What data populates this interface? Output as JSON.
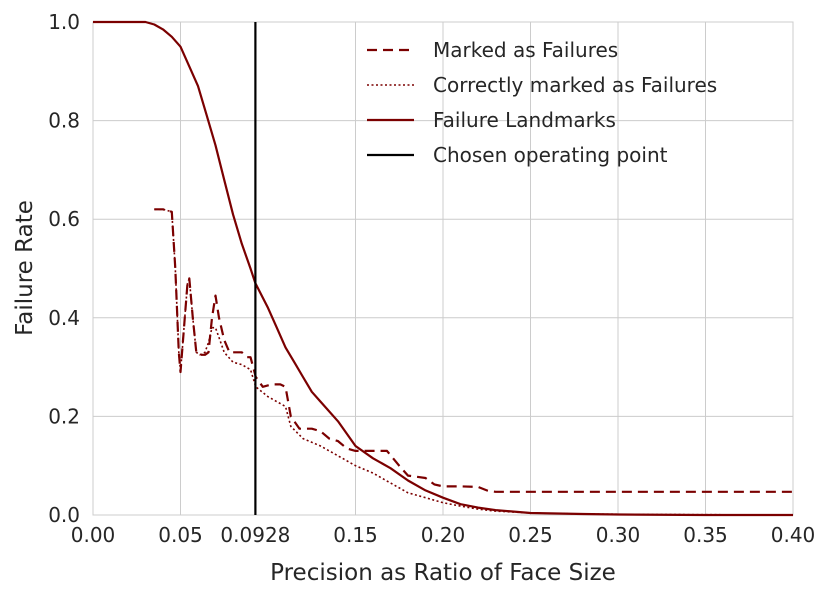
{
  "chart_data": {
    "type": "line",
    "title": "",
    "xlabel": "Precision as Ratio of Face Size",
    "ylabel": "Failure Rate",
    "xlim": [
      0.0,
      0.4
    ],
    "ylim": [
      0.0,
      1.0
    ],
    "xticks": [
      {
        "value": 0.0,
        "label": "0.00"
      },
      {
        "value": 0.05,
        "label": "0.05"
      },
      {
        "value": 0.0928,
        "label": "0.0928"
      },
      {
        "value": 0.15,
        "label": "0.15"
      },
      {
        "value": 0.2,
        "label": "0.20"
      },
      {
        "value": 0.25,
        "label": "0.25"
      },
      {
        "value": 0.3,
        "label": "0.30"
      },
      {
        "value": 0.35,
        "label": "0.35"
      },
      {
        "value": 0.4,
        "label": "0.40"
      }
    ],
    "yticks": [
      {
        "value": 0.0,
        "label": "0.0"
      },
      {
        "value": 0.2,
        "label": "0.2"
      },
      {
        "value": 0.4,
        "label": "0.4"
      },
      {
        "value": 0.6,
        "label": "0.6"
      },
      {
        "value": 0.8,
        "label": "0.8"
      },
      {
        "value": 1.0,
        "label": "1.0"
      }
    ],
    "grid": true,
    "legend_position": "top-right",
    "series": [
      {
        "name": "Marked as Failures",
        "style": "dashed",
        "color": "#7b0000",
        "points": [
          [
            0.035,
            0.62
          ],
          [
            0.04,
            0.62
          ],
          [
            0.045,
            0.615
          ],
          [
            0.047,
            0.5
          ],
          [
            0.049,
            0.33
          ],
          [
            0.05,
            0.29
          ],
          [
            0.052,
            0.38
          ],
          [
            0.054,
            0.47
          ],
          [
            0.055,
            0.48
          ],
          [
            0.057,
            0.4
          ],
          [
            0.059,
            0.33
          ],
          [
            0.061,
            0.325
          ],
          [
            0.064,
            0.325
          ],
          [
            0.066,
            0.33
          ],
          [
            0.068,
            0.4
          ],
          [
            0.07,
            0.445
          ],
          [
            0.072,
            0.4
          ],
          [
            0.075,
            0.355
          ],
          [
            0.078,
            0.33
          ],
          [
            0.085,
            0.33
          ],
          [
            0.088,
            0.32
          ],
          [
            0.09,
            0.32
          ],
          [
            0.093,
            0.28
          ],
          [
            0.097,
            0.26
          ],
          [
            0.102,
            0.265
          ],
          [
            0.107,
            0.265
          ],
          [
            0.11,
            0.26
          ],
          [
            0.113,
            0.2
          ],
          [
            0.118,
            0.175
          ],
          [
            0.125,
            0.175
          ],
          [
            0.13,
            0.17
          ],
          [
            0.135,
            0.155
          ],
          [
            0.14,
            0.15
          ],
          [
            0.145,
            0.135
          ],
          [
            0.15,
            0.13
          ],
          [
            0.16,
            0.13
          ],
          [
            0.168,
            0.13
          ],
          [
            0.175,
            0.1
          ],
          [
            0.18,
            0.08
          ],
          [
            0.19,
            0.075
          ],
          [
            0.195,
            0.062
          ],
          [
            0.2,
            0.058
          ],
          [
            0.21,
            0.058
          ],
          [
            0.22,
            0.057
          ],
          [
            0.225,
            0.05
          ],
          [
            0.23,
            0.047
          ],
          [
            0.25,
            0.047
          ],
          [
            0.3,
            0.047
          ],
          [
            0.35,
            0.047
          ],
          [
            0.4,
            0.047
          ]
        ]
      },
      {
        "name": "Correctly marked as Failures",
        "style": "dotted",
        "color": "#7b0000",
        "points": [
          [
            0.035,
            0.62
          ],
          [
            0.04,
            0.62
          ],
          [
            0.045,
            0.615
          ],
          [
            0.047,
            0.5
          ],
          [
            0.049,
            0.33
          ],
          [
            0.05,
            0.29
          ],
          [
            0.052,
            0.38
          ],
          [
            0.054,
            0.47
          ],
          [
            0.055,
            0.48
          ],
          [
            0.057,
            0.4
          ],
          [
            0.059,
            0.33
          ],
          [
            0.061,
            0.325
          ],
          [
            0.064,
            0.33
          ],
          [
            0.066,
            0.35
          ],
          [
            0.068,
            0.38
          ],
          [
            0.07,
            0.38
          ],
          [
            0.072,
            0.36
          ],
          [
            0.075,
            0.33
          ],
          [
            0.08,
            0.31
          ],
          [
            0.085,
            0.305
          ],
          [
            0.09,
            0.295
          ],
          [
            0.093,
            0.26
          ],
          [
            0.1,
            0.24
          ],
          [
            0.11,
            0.22
          ],
          [
            0.113,
            0.18
          ],
          [
            0.12,
            0.155
          ],
          [
            0.13,
            0.14
          ],
          [
            0.14,
            0.12
          ],
          [
            0.15,
            0.1
          ],
          [
            0.16,
            0.085
          ],
          [
            0.17,
            0.065
          ],
          [
            0.18,
            0.045
          ],
          [
            0.19,
            0.035
          ],
          [
            0.2,
            0.025
          ],
          [
            0.21,
            0.018
          ],
          [
            0.22,
            0.012
          ],
          [
            0.23,
            0.008
          ],
          [
            0.25,
            0.004
          ],
          [
            0.28,
            0.002
          ],
          [
            0.32,
            0.001
          ],
          [
            0.4,
            0.0
          ]
        ]
      },
      {
        "name": "Failure Landmarks",
        "style": "solid",
        "color": "#7b0000",
        "points": [
          [
            0.0,
            1.0
          ],
          [
            0.02,
            1.0
          ],
          [
            0.03,
            1.0
          ],
          [
            0.035,
            0.995
          ],
          [
            0.04,
            0.985
          ],
          [
            0.045,
            0.97
          ],
          [
            0.05,
            0.95
          ],
          [
            0.055,
            0.91
          ],
          [
            0.06,
            0.87
          ],
          [
            0.065,
            0.81
          ],
          [
            0.07,
            0.75
          ],
          [
            0.075,
            0.68
          ],
          [
            0.08,
            0.61
          ],
          [
            0.085,
            0.55
          ],
          [
            0.09,
            0.5
          ],
          [
            0.0928,
            0.47
          ],
          [
            0.1,
            0.42
          ],
          [
            0.105,
            0.38
          ],
          [
            0.11,
            0.34
          ],
          [
            0.115,
            0.31
          ],
          [
            0.12,
            0.28
          ],
          [
            0.125,
            0.25
          ],
          [
            0.13,
            0.23
          ],
          [
            0.14,
            0.19
          ],
          [
            0.15,
            0.14
          ],
          [
            0.16,
            0.115
          ],
          [
            0.17,
            0.095
          ],
          [
            0.18,
            0.07
          ],
          [
            0.19,
            0.05
          ],
          [
            0.2,
            0.035
          ],
          [
            0.21,
            0.022
          ],
          [
            0.22,
            0.015
          ],
          [
            0.23,
            0.01
          ],
          [
            0.25,
            0.004
          ],
          [
            0.28,
            0.002
          ],
          [
            0.3,
            0.001
          ],
          [
            0.35,
            0.0
          ],
          [
            0.4,
            0.0
          ]
        ]
      },
      {
        "name": "Chosen operating point",
        "style": "solid",
        "color": "#000000",
        "points": [
          [
            0.0928,
            0.0
          ],
          [
            0.0928,
            1.0
          ]
        ]
      }
    ]
  }
}
